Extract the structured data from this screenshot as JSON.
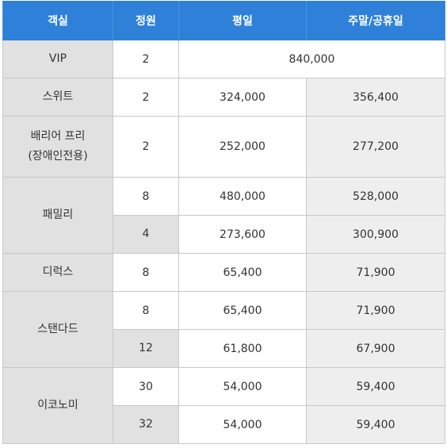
{
  "headers": [
    "객실",
    "정원",
    "평일",
    "주말/공휴일"
  ],
  "rows": {
    "vip": {
      "room": "VIP",
      "capacity": "2",
      "price_all": "840,000"
    },
    "suite": {
      "room": "스위트",
      "capacity": "2",
      "weekday": "324,000",
      "weekend": "356,400"
    },
    "barrier": {
      "room_line1": "배리어 프리",
      "room_line2": "(장애인전용)",
      "capacity": "2",
      "weekday": "252,000",
      "weekend": "277,200"
    },
    "family_a": {
      "room": "패밀리",
      "capacity": "8",
      "weekday": "480,000",
      "weekend": "528,000"
    },
    "family_b": {
      "capacity": "4",
      "weekday": "273,600",
      "weekend": "300,900"
    },
    "deluxe": {
      "room": "디럭스",
      "capacity": "8",
      "weekday": "65,400",
      "weekend": "71,900"
    },
    "standard_a": {
      "room": "스탠다드",
      "capacity": "8",
      "weekday": "65,400",
      "weekend": "71,900"
    },
    "standard_b": {
      "capacity": "12",
      "weekday": "61,800",
      "weekend": "67,900"
    },
    "economy_a": {
      "room": "이코노미",
      "capacity": "30",
      "weekday": "54,000",
      "weekend": "59,400"
    },
    "economy_b": {
      "capacity": "32",
      "weekday": "54,000",
      "weekend": "59,400"
    }
  }
}
